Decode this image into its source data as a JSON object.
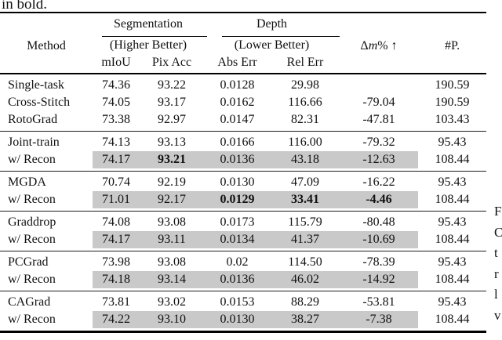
{
  "page": {
    "top_text": "in bold.",
    "side_fragments": [
      "F",
      "C",
      "t",
      "r",
      "l",
      "v"
    ]
  },
  "colors": {
    "highlight": "#c9c9c9"
  },
  "table": {
    "header": {
      "method": "Method",
      "segmentation": "Segmentation",
      "segmentation_sub": "(Higher Better)",
      "depth": "Depth",
      "depth_sub": "(Lower Better)",
      "col_miou": "mIoU",
      "col_pixacc": "Pix Acc",
      "col_abserr": "Abs Err",
      "col_relerr": "Rel Err",
      "delta_sym": "Δ",
      "delta_var": "m",
      "delta_rest": "% ↑",
      "params": "#P."
    },
    "rows": [
      {
        "method": "Single-task",
        "miou": "74.36",
        "pix_acc": "93.22",
        "abs_err": "0.0128",
        "rel_err": "29.98",
        "delta_m": "",
        "params": "190.59"
      },
      {
        "method": "Cross-Stitch",
        "miou": "74.05",
        "pix_acc": "93.17",
        "abs_err": "0.0162",
        "rel_err": "116.66",
        "delta_m": "-79.04",
        "params": "190.59"
      },
      {
        "method": "RotoGrad",
        "miou": "73.38",
        "pix_acc": "92.97",
        "abs_err": "0.0147",
        "rel_err": "82.31",
        "delta_m": "-47.81",
        "params": "103.43"
      },
      {
        "method": "Joint-train",
        "miou": "74.13",
        "pix_acc": "93.13",
        "abs_err": "0.0166",
        "rel_err": "116.00",
        "delta_m": "-79.32",
        "params": "95.43"
      },
      {
        "method": "w/ Recon",
        "miou": "74.17",
        "pix_acc": "93.21",
        "abs_err": "0.0136",
        "rel_err": "43.18",
        "delta_m": "-12.63",
        "params": "108.44"
      },
      {
        "method": "MGDA",
        "miou": "70.74",
        "pix_acc": "92.19",
        "abs_err": "0.0130",
        "rel_err": "47.09",
        "delta_m": "-16.22",
        "params": "95.43"
      },
      {
        "method": "w/ Recon",
        "miou": "71.01",
        "pix_acc": "92.17",
        "abs_err": "0.0129",
        "rel_err": "33.41",
        "delta_m": "-4.46",
        "params": "108.44"
      },
      {
        "method": "Graddrop",
        "miou": "74.08",
        "pix_acc": "93.08",
        "abs_err": "0.0173",
        "rel_err": "115.79",
        "delta_m": "-80.48",
        "params": "95.43"
      },
      {
        "method": "w/ Recon",
        "miou": "74.17",
        "pix_acc": "93.11",
        "abs_err": "0.0134",
        "rel_err": "41.37",
        "delta_m": "-10.69",
        "params": "108.44"
      },
      {
        "method": "PCGrad",
        "miou": "73.98",
        "pix_acc": "93.08",
        "abs_err": "0.02",
        "rel_err": "114.50",
        "delta_m": "-78.39",
        "params": "95.43"
      },
      {
        "method": "w/ Recon",
        "miou": "74.18",
        "pix_acc": "93.14",
        "abs_err": "0.0136",
        "rel_err": "46.02",
        "delta_m": "-14.92",
        "params": "108.44"
      },
      {
        "method": "CAGrad",
        "miou": "73.81",
        "pix_acc": "93.02",
        "abs_err": "0.0153",
        "rel_err": "88.29",
        "delta_m": "-53.81",
        "params": "95.43"
      },
      {
        "method": "w/ Recon",
        "miou": "74.22",
        "pix_acc": "93.10",
        "abs_err": "0.0130",
        "rel_err": "38.27",
        "delta_m": "-7.38",
        "params": "108.44"
      }
    ]
  }
}
